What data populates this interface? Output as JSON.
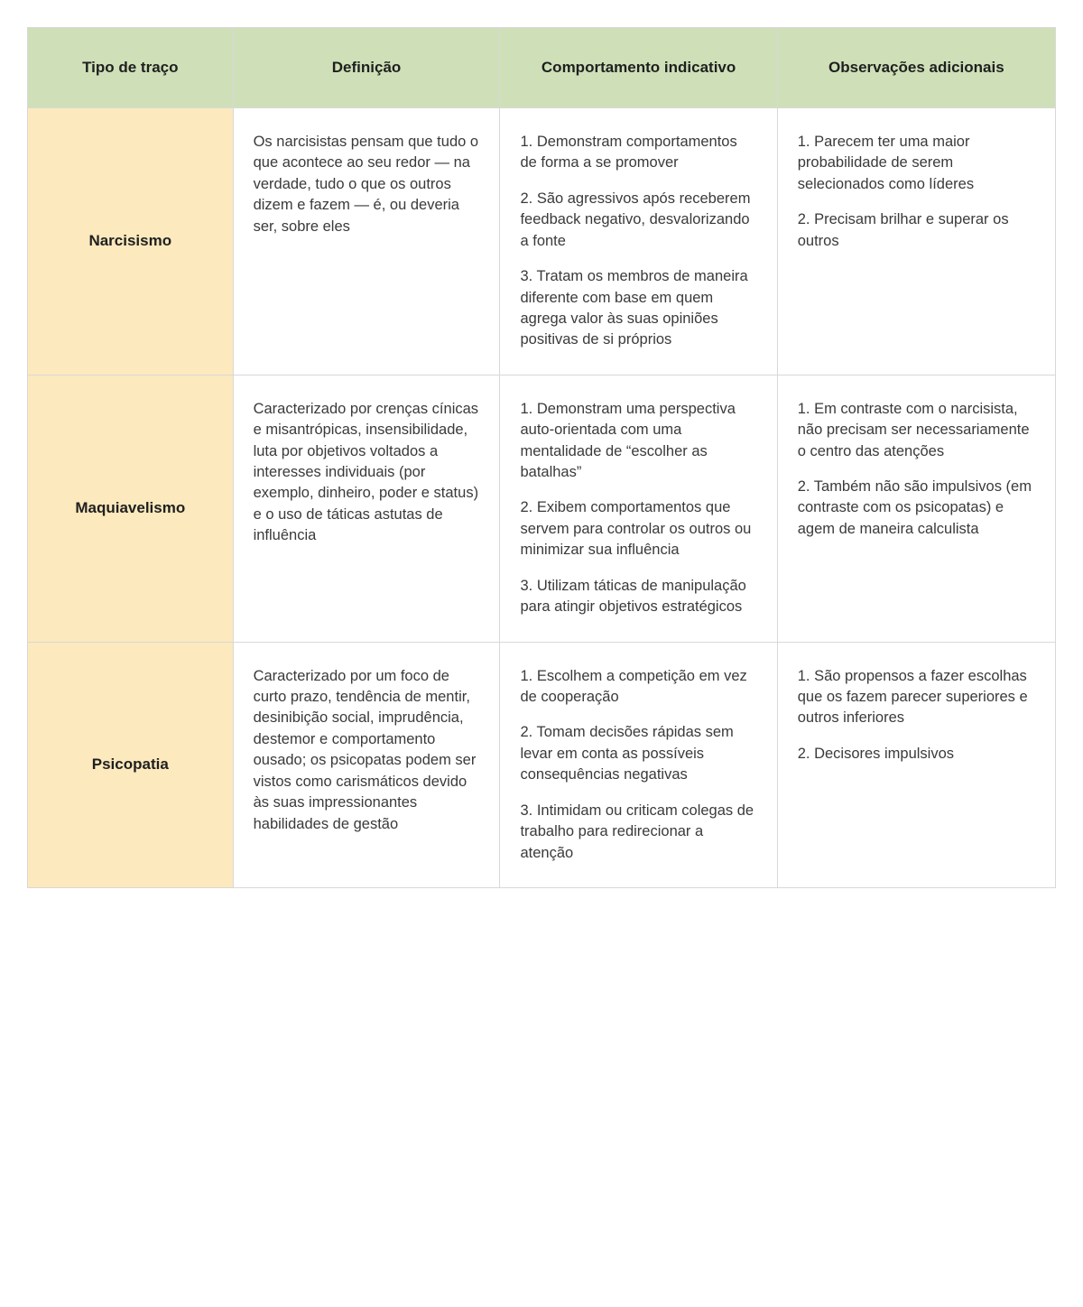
{
  "table": {
    "header_bg": "#cfe0b8",
    "trait_bg": "#fce9bd",
    "border_color": "#d8d8d8",
    "text_color": "#3a3a3a",
    "heading_color": "#1f1f1f",
    "body_fontsize": 16.5,
    "heading_fontsize": 17,
    "columns": [
      "Tipo de traço",
      "Definição",
      "Comportamento indicativo",
      "Observações adicionais"
    ],
    "rows": [
      {
        "trait": "Narcisismo",
        "definition": "Os narcisistas pensam que tudo o que acontece ao seu redor — na verdade, tudo o que os outros dizem e fazem — é, ou deveria ser, sobre eles",
        "behaviors": [
          "1. Demonstram comportamentos de forma a se promover",
          "2. São agressivos após receberem feedback negativo, desvalorizando a fonte",
          "3. Tratam os membros de maneira diferente com base em quem agrega valor às suas opiniões positivas de si próprios"
        ],
        "observations": [
          "1. Parecem ter uma maior probabilidade de serem selecionados como líderes",
          "2. Precisam brilhar e superar os outros"
        ]
      },
      {
        "trait": "Maquiavelismo",
        "definition": "Caracterizado por crenças cínicas e misantrópicas, insensibilidade, luta por objetivos voltados a interesses individuais (por exemplo, dinheiro, poder e status) e o uso de táticas astutas de influência",
        "behaviors": [
          "1. Demonstram uma perspectiva auto-orientada com uma mentalidade de “escolher as batalhas”",
          "2. Exibem  comportamentos que servem para controlar os outros ou minimizar sua influência",
          "3. Utilizam táticas de manipulação para atingir objetivos estratégicos"
        ],
        "observations": [
          "1. Em contraste com o narcisista, não precisam ser necessariamente o centro das atenções",
          "2. Também não são impulsivos (em contraste com os psicopatas) e agem de maneira calculista"
        ]
      },
      {
        "trait": "Psicopatia",
        "definition": "Caracterizado por um foco de curto prazo, tendência de mentir, desinibição social, imprudência, destemor e comportamento ousado; os psicopatas podem ser vistos como carismáticos devido às suas impressionantes habilidades de gestão",
        "behaviors": [
          "1. Escolhem a competição em vez de cooperação",
          "2. Tomam decisões rápidas sem levar em conta as possíveis consequências negativas",
          "3. Intimidam ou criticam colegas de trabalho para redirecionar a atenção"
        ],
        "observations": [
          "1. São propensos a fazer escolhas que os fazem parecer superiores e outros inferiores",
          "2. Decisores impulsivos"
        ]
      }
    ]
  }
}
